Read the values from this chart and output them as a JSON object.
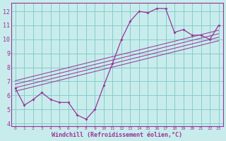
{
  "xlabel": "Windchill (Refroidissement éolien,°C)",
  "bg_color": "#c8ecec",
  "grid_color": "#88cccc",
  "line_color": "#993399",
  "x_data": [
    0,
    1,
    2,
    3,
    4,
    5,
    6,
    7,
    8,
    9,
    10,
    11,
    12,
    13,
    14,
    15,
    16,
    17,
    18,
    19,
    20,
    21,
    22,
    23
  ],
  "y_data": [
    6.5,
    5.3,
    5.7,
    6.2,
    5.7,
    5.5,
    5.5,
    4.6,
    4.3,
    5.0,
    6.7,
    8.3,
    10.0,
    11.3,
    12.0,
    11.9,
    12.2,
    12.2,
    10.5,
    10.7,
    10.3,
    10.3,
    10.0,
    11.0
  ],
  "diag_lines": [
    [
      6.3,
      9.9
    ],
    [
      6.55,
      10.15
    ],
    [
      6.8,
      10.4
    ],
    [
      7.05,
      10.65
    ]
  ],
  "xlim": [
    -0.5,
    23.5
  ],
  "ylim": [
    3.8,
    12.6
  ],
  "yticks": [
    4,
    5,
    6,
    7,
    8,
    9,
    10,
    11,
    12
  ],
  "xticks": [
    0,
    1,
    2,
    3,
    4,
    5,
    6,
    7,
    8,
    9,
    10,
    11,
    12,
    13,
    14,
    15,
    16,
    17,
    18,
    19,
    20,
    21,
    22,
    23
  ]
}
